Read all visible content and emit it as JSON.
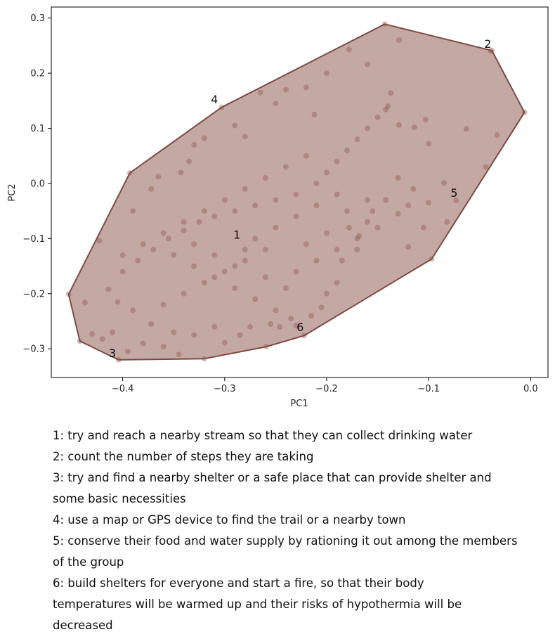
{
  "chart_data": {
    "type": "scatter",
    "xlabel": "PC1",
    "ylabel": "PC2",
    "xlim": [
      -0.47,
      0.017
    ],
    "ylim": [
      -0.352,
      0.32
    ],
    "xticks": [
      -0.4,
      -0.3,
      -0.2,
      -0.1,
      0.0
    ],
    "xtick_labels": [
      "−0.4",
      "−0.3",
      "−0.2",
      "−0.1",
      "0.0"
    ],
    "yticks": [
      -0.3,
      -0.2,
      -0.1,
      0.0,
      0.1,
      0.2,
      0.3
    ],
    "ytick_labels": [
      "−0.3",
      "−0.2",
      "−0.1",
      "0.0",
      "0.1",
      "0.2",
      "0.3"
    ],
    "grid": false,
    "colors": {
      "hull_fill": "#c4a8a3",
      "hull_stroke": "#7f4a41",
      "point": "#8a4a40"
    },
    "hull": [
      [
        -0.143,
        0.289
      ],
      [
        -0.038,
        0.241
      ],
      [
        -0.006,
        0.129
      ],
      [
        -0.097,
        -0.137
      ],
      [
        -0.222,
        -0.276
      ],
      [
        -0.259,
        -0.296
      ],
      [
        -0.32,
        -0.318
      ],
      [
        -0.404,
        -0.32
      ],
      [
        -0.442,
        -0.286
      ],
      [
        -0.453,
        -0.201
      ],
      [
        -0.393,
        0.019
      ],
      [
        -0.303,
        0.138
      ]
    ],
    "labels": [
      {
        "id": "1",
        "x": -0.288,
        "y": -0.1
      },
      {
        "id": "2",
        "x": -0.042,
        "y": 0.246
      },
      {
        "id": "3",
        "x": -0.41,
        "y": -0.315
      },
      {
        "id": "4",
        "x": -0.31,
        "y": 0.145
      },
      {
        "id": "5",
        "x": -0.075,
        "y": -0.024
      },
      {
        "id": "6",
        "x": -0.226,
        "y": -0.268
      }
    ],
    "points": [
      [
        -0.143,
        0.289
      ],
      [
        -0.038,
        0.241
      ],
      [
        -0.006,
        0.129
      ],
      [
        -0.097,
        -0.137
      ],
      [
        -0.222,
        -0.276
      ],
      [
        -0.259,
        -0.296
      ],
      [
        -0.32,
        -0.318
      ],
      [
        -0.404,
        -0.32
      ],
      [
        -0.442,
        -0.286
      ],
      [
        -0.453,
        -0.201
      ],
      [
        -0.393,
        0.019
      ],
      [
        -0.303,
        0.138
      ],
      [
        -0.129,
        0.26
      ],
      [
        -0.039,
        0.24
      ],
      [
        -0.073,
        -0.031
      ],
      [
        -0.437,
        -0.216
      ],
      [
        -0.414,
        -0.192
      ],
      [
        -0.063,
        0.099
      ],
      [
        -0.033,
        0.088
      ],
      [
        -0.178,
        0.243
      ],
      [
        -0.082,
        -0.07
      ],
      [
        -0.2,
        0.2
      ],
      [
        -0.16,
        0.216
      ],
      [
        -0.142,
        0.134
      ],
      [
        -0.137,
        0.164
      ],
      [
        -0.129,
        0.106
      ],
      [
        -0.114,
        0.102
      ],
      [
        -0.103,
        0.116
      ],
      [
        -0.1,
        0.072
      ],
      [
        -0.085,
        0.001
      ],
      [
        -0.044,
        0.03
      ],
      [
        -0.22,
        0.174
      ],
      [
        -0.24,
        0.17
      ],
      [
        -0.265,
        0.165
      ],
      [
        -0.212,
        0.125
      ],
      [
        -0.25,
        0.145
      ],
      [
        -0.43,
        -0.273
      ],
      [
        -0.42,
        -0.282
      ],
      [
        -0.41,
        -0.27
      ],
      [
        -0.395,
        -0.305
      ],
      [
        -0.38,
        -0.29
      ],
      [
        -0.36,
        -0.296
      ],
      [
        -0.345,
        -0.31
      ],
      [
        -0.3,
        -0.289
      ],
      [
        -0.285,
        -0.275
      ],
      [
        -0.246,
        -0.26
      ],
      [
        -0.23,
        -0.258
      ],
      [
        -0.423,
        -0.104
      ],
      [
        -0.39,
        -0.05
      ],
      [
        -0.372,
        -0.01
      ],
      [
        -0.365,
        0.012
      ],
      [
        -0.343,
        0.02
      ],
      [
        -0.33,
        0.07
      ],
      [
        -0.335,
        0.04
      ],
      [
        -0.32,
        0.082
      ],
      [
        -0.29,
        0.105
      ],
      [
        -0.28,
        0.085
      ],
      [
        -0.13,
        0.01
      ],
      [
        -0.115,
        -0.01
      ],
      [
        -0.12,
        -0.04
      ],
      [
        -0.1,
        -0.035
      ],
      [
        -0.105,
        -0.08
      ],
      [
        -0.12,
        -0.115
      ],
      [
        -0.13,
        -0.055
      ],
      [
        -0.142,
        -0.03
      ],
      [
        -0.155,
        -0.05
      ],
      [
        -0.16,
        -0.07
      ],
      [
        -0.168,
        -0.095
      ],
      [
        -0.178,
        -0.08
      ],
      [
        -0.17,
        -0.12
      ],
      [
        -0.185,
        -0.14
      ],
      [
        -0.19,
        -0.18
      ],
      [
        -0.2,
        -0.2
      ],
      [
        -0.205,
        -0.225
      ],
      [
        -0.215,
        -0.24
      ],
      [
        -0.235,
        -0.245
      ],
      [
        -0.255,
        -0.255
      ],
      [
        -0.275,
        -0.26
      ],
      [
        -0.31,
        -0.26
      ],
      [
        -0.33,
        -0.275
      ],
      [
        -0.35,
        -0.27
      ],
      [
        -0.372,
        -0.255
      ],
      [
        -0.39,
        -0.23
      ],
      [
        -0.405,
        -0.215
      ],
      [
        -0.4,
        -0.16
      ],
      [
        -0.385,
        -0.14
      ],
      [
        -0.37,
        -0.12
      ],
      [
        -0.355,
        -0.1
      ],
      [
        -0.34,
        -0.085
      ],
      [
        -0.325,
        -0.07
      ],
      [
        -0.31,
        -0.06
      ],
      [
        -0.29,
        -0.05
      ],
      [
        -0.27,
        -0.04
      ],
      [
        -0.25,
        -0.03
      ],
      [
        -0.23,
        -0.02
      ],
      [
        -0.21,
        0.0
      ],
      [
        -0.2,
        0.02
      ],
      [
        -0.19,
        0.04
      ],
      [
        -0.18,
        0.06
      ],
      [
        -0.17,
        0.08
      ],
      [
        -0.16,
        0.1
      ],
      [
        -0.15,
        0.12
      ],
      [
        -0.14,
        0.14
      ],
      [
        -0.22,
        0.05
      ],
      [
        -0.24,
        0.03
      ],
      [
        -0.26,
        0.01
      ],
      [
        -0.28,
        -0.01
      ],
      [
        -0.3,
        -0.03
      ],
      [
        -0.32,
        -0.05
      ],
      [
        -0.34,
        -0.07
      ],
      [
        -0.36,
        -0.09
      ],
      [
        -0.38,
        -0.11
      ],
      [
        -0.4,
        -0.13
      ],
      [
        -0.33,
        -0.15
      ],
      [
        -0.31,
        -0.17
      ],
      [
        -0.29,
        -0.19
      ],
      [
        -0.27,
        -0.21
      ],
      [
        -0.25,
        -0.23
      ],
      [
        -0.23,
        -0.16
      ],
      [
        -0.21,
        -0.14
      ],
      [
        -0.19,
        -0.12
      ],
      [
        -0.17,
        -0.1
      ],
      [
        -0.15,
        -0.08
      ],
      [
        -0.26,
        -0.12
      ],
      [
        -0.28,
        -0.14
      ],
      [
        -0.3,
        -0.16
      ],
      [
        -0.32,
        -0.18
      ],
      [
        -0.34,
        -0.2
      ],
      [
        -0.36,
        -0.22
      ],
      [
        -0.27,
        -0.1
      ],
      [
        -0.25,
        -0.08
      ],
      [
        -0.23,
        -0.06
      ],
      [
        -0.21,
        -0.04
      ],
      [
        -0.19,
        -0.02
      ],
      [
        -0.28,
        -0.12
      ],
      [
        -0.31,
        -0.13
      ],
      [
        -0.33,
        -0.11
      ],
      [
        -0.35,
        -0.13
      ],
      [
        -0.29,
        -0.15
      ],
      [
        -0.26,
        -0.17
      ],
      [
        -0.24,
        -0.19
      ],
      [
        -0.22,
        -0.11
      ],
      [
        -0.2,
        -0.09
      ],
      [
        -0.18,
        -0.05
      ],
      [
        -0.16,
        -0.03
      ]
    ]
  },
  "legend": [
    "1: try and reach a nearby stream so that they can collect drinking water",
    "2: count the number of steps they are taking",
    "3: try and find a nearby shelter or a safe place that can provide shelter and",
    "some basic necessities",
    "4: use a map or GPS device to find the trail or a nearby town",
    "5: conserve their food and water supply by rationing it out among the members",
    "of the group",
    "6: build shelters for everyone and start a fire, so that their body",
    "temperatures will be warmed up and their risks of hypothermia will be",
    "decreased"
  ]
}
